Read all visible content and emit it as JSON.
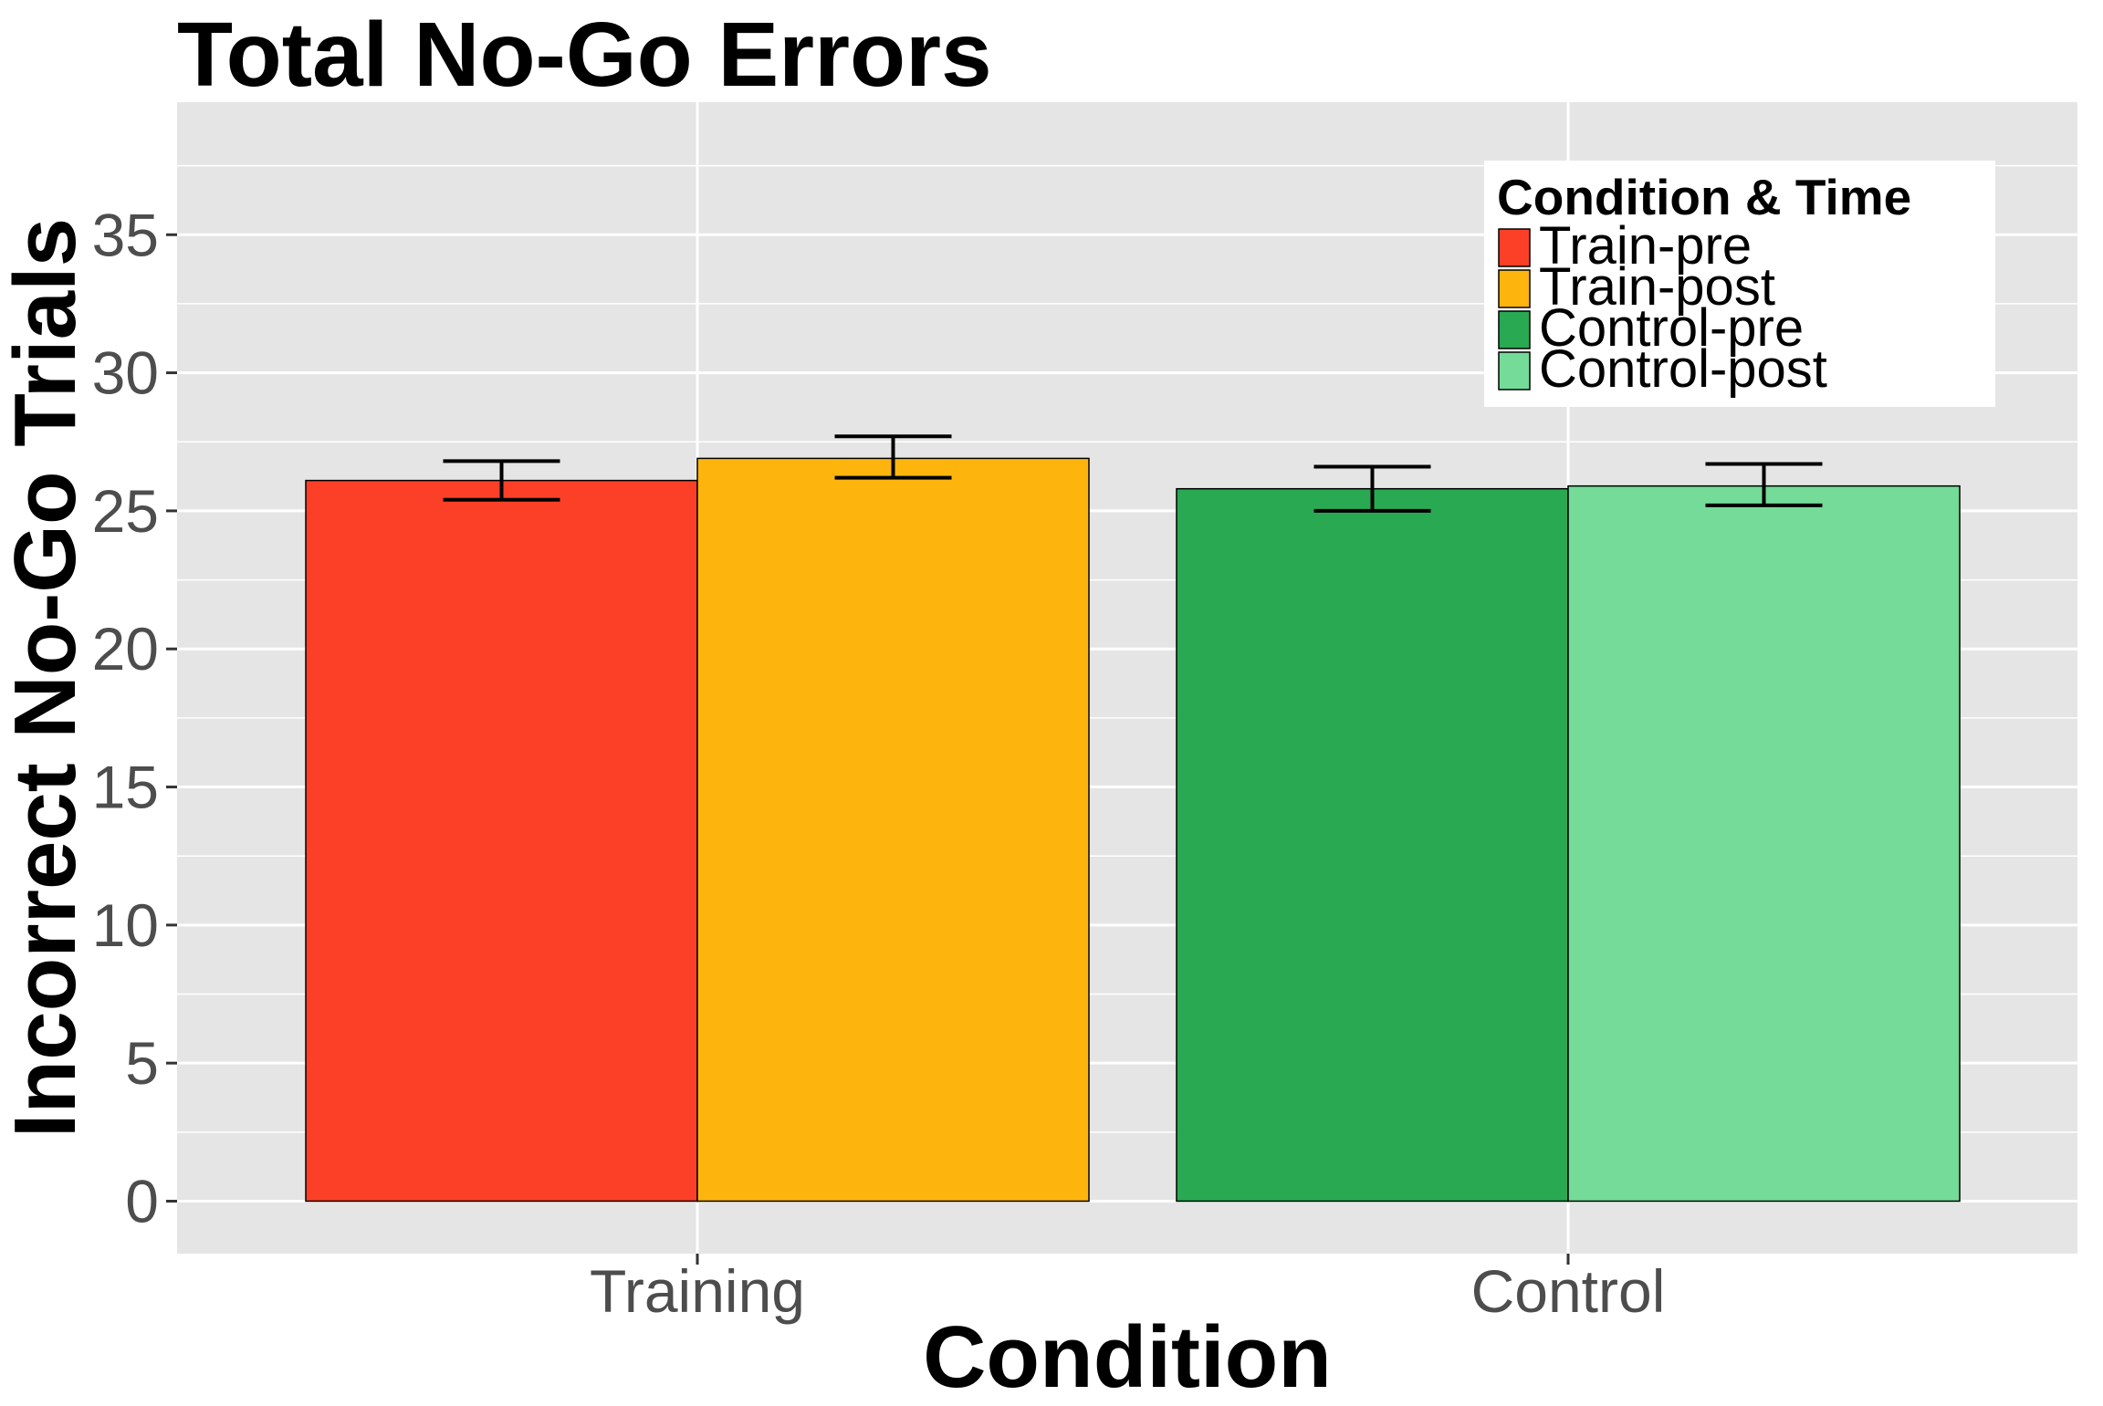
{
  "chart_data": {
    "type": "bar",
    "title": "Total No-Go Errors",
    "xlabel": "Condition",
    "ylabel": "Incorrect No-Go Trials",
    "categories": [
      "Training",
      "Control"
    ],
    "ylim": [
      -1.9,
      39.8
    ],
    "yticks": [
      0,
      5,
      10,
      15,
      20,
      25,
      30,
      35
    ],
    "grid": true,
    "legend": {
      "title": "Condition & Time",
      "position": "top-right",
      "entries": [
        "Train-pre",
        "Train-post",
        "Control-pre",
        "Control-post"
      ]
    },
    "series": [
      {
        "name": "Train-pre",
        "category": "Training",
        "value": 26.1,
        "error_low": 25.4,
        "error_high": 26.8,
        "color": "#fc4027"
      },
      {
        "name": "Train-post",
        "category": "Training",
        "value": 26.9,
        "error_low": 26.2,
        "error_high": 27.7,
        "color": "#fdb50e"
      },
      {
        "name": "Control-pre",
        "category": "Control",
        "value": 25.8,
        "error_low": 25.0,
        "error_high": 26.6,
        "color": "#29a952"
      },
      {
        "name": "Control-post",
        "category": "Control",
        "value": 25.9,
        "error_low": 25.2,
        "error_high": 26.7,
        "color": "#74db98"
      }
    ]
  }
}
